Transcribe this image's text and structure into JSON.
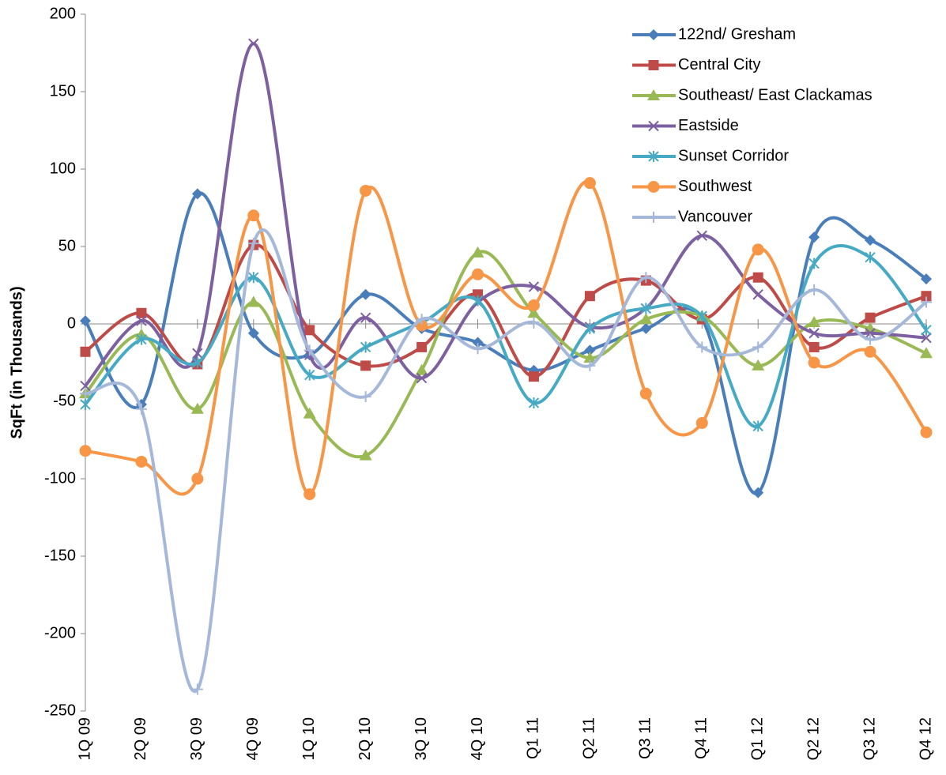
{
  "chart_data": {
    "type": "line",
    "smooth": true,
    "y_label": "SqFt (in Thousands)",
    "categories": [
      "1Q 09",
      "2Q 09",
      "3Q 09",
      "4Q 09",
      "1Q 10",
      "2Q 10",
      "3Q 10",
      "4Q 10",
      "Q1 11",
      "Q2 11",
      "Q3 11",
      "Q4 11",
      "Q1 12",
      "Q2 12",
      "Q3 12",
      "Q4 12"
    ],
    "ylim": [
      -250,
      200
    ],
    "yticks": [
      -250,
      -200,
      -150,
      -100,
      -50,
      0,
      50,
      100,
      150,
      200
    ],
    "legend": "top-right",
    "series": [
      {
        "name": "122nd/ Gresham",
        "color": "#4a7ebb",
        "marker": "diamond",
        "values": [
          2,
          -52,
          84,
          -6,
          -20,
          19,
          -3,
          -12,
          -30,
          -17,
          -3,
          3,
          -109,
          56,
          54,
          29
        ]
      },
      {
        "name": "Central City",
        "color": "#be4b48",
        "marker": "square",
        "values": [
          -18,
          7,
          -26,
          51,
          -4,
          -27,
          -15,
          19,
          -34,
          18,
          28,
          3,
          30,
          -15,
          4,
          18
        ]
      },
      {
        "name": "Southeast/ East Clackamas",
        "color": "#98b954",
        "marker": "triangle",
        "values": [
          -45,
          -7,
          -55,
          14,
          -58,
          -85,
          -30,
          46,
          7,
          -22,
          3,
          5,
          -27,
          1,
          -3,
          -19
        ]
      },
      {
        "name": "Eastside",
        "color": "#7d60a0",
        "marker": "x",
        "values": [
          -40,
          2,
          -19,
          181,
          -20,
          4,
          -35,
          14,
          24,
          -2,
          10,
          57,
          19,
          -6,
          -6,
          -9
        ]
      },
      {
        "name": "Sunset Corridor",
        "color": "#46aac5",
        "marker": "star",
        "values": [
          -52,
          -10,
          -25,
          30,
          -33,
          -15,
          1,
          15,
          -51,
          -3,
          10,
          5,
          -66,
          39,
          43,
          -4
        ]
      },
      {
        "name": "Southwest",
        "color": "#f79646",
        "marker": "circle",
        "values": [
          -82,
          -89,
          -100,
          70,
          -110,
          86,
          -1,
          32,
          12,
          91,
          -45,
          -64,
          48,
          -25,
          -18,
          -70
        ]
      },
      {
        "name": "Vancouver",
        "color": "#a5b8d9",
        "marker": "plus",
        "values": [
          -45,
          -55,
          -236,
          52,
          -17,
          -47,
          3,
          -16,
          1,
          -27,
          30,
          -15,
          -15,
          22,
          -10,
          14
        ]
      }
    ]
  }
}
